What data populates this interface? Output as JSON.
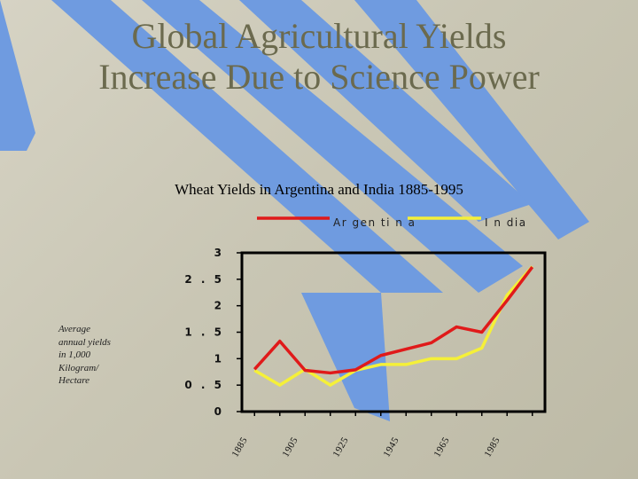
{
  "slide": {
    "title_line1": "Global Agricultural Yields",
    "title_line2": "Increase Due to Science Power"
  },
  "colors": {
    "background": "#c9c6b4",
    "stripe": "#6f9be0",
    "argentina": "#e01a1a",
    "india": "#f5f038",
    "title": "#6b6a4e"
  },
  "chart_data": {
    "type": "line",
    "title": "Wheat Yields in Argentina and India 1885-1995",
    "ylabel_lines": [
      "Average",
      "annual yields",
      "in 1,000",
      "Kilogram/",
      "Hectare"
    ],
    "xlabel": "",
    "x": [
      1885,
      1895,
      1905,
      1915,
      1925,
      1935,
      1945,
      1955,
      1965,
      1975,
      1985,
      1995
    ],
    "xlim": [
      1880,
      2000
    ],
    "ylim": [
      0,
      3
    ],
    "yticks": [
      0,
      0.5,
      1,
      1.5,
      2,
      2.5,
      3
    ],
    "ytick_labels": [
      "0",
      "0 . 5",
      "1",
      "1 . 5",
      "2",
      "2 . 5",
      "3"
    ],
    "xticks": [
      1885,
      1905,
      1925,
      1945,
      1965,
      1985
    ],
    "xtick_labels": [
      "1885",
      "1905",
      "1925",
      "1945",
      "1965",
      "1985"
    ],
    "grid": false,
    "legend": "top",
    "series": [
      {
        "name": "Ar gen ti n a",
        "values": [
          0.8,
          1.33,
          0.78,
          0.73,
          0.79,
          1.06,
          1.18,
          1.3,
          1.6,
          1.5,
          2.1,
          2.73
        ]
      },
      {
        "name": "I n dia",
        "values": [
          0.78,
          0.5,
          0.8,
          0.5,
          0.78,
          0.89,
          0.89,
          1.0,
          1.0,
          1.2,
          2.2,
          2.74
        ]
      }
    ]
  }
}
